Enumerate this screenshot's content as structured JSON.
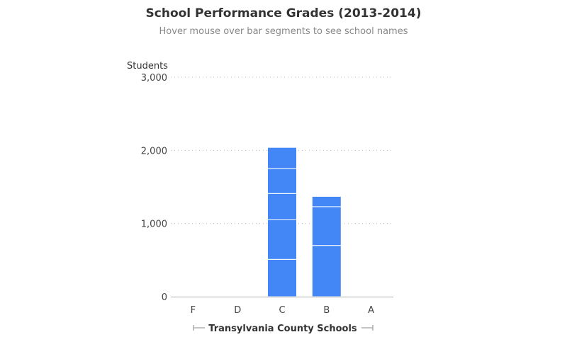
{
  "chart_data": {
    "type": "bar",
    "stacked": true,
    "title": "School Performance Grades (2013-2014)",
    "subtitle": "Hover mouse over bar segments to see school names",
    "ylabel": "Students",
    "xlabel": "",
    "ylim": [
      0,
      3000
    ],
    "yticks": [
      0,
      1000,
      2000,
      3000
    ],
    "ytick_labels": [
      "0",
      "1,000",
      "2,000",
      "3,000"
    ],
    "grid": true,
    "categories": [
      "F",
      "D",
      "C",
      "B",
      "A"
    ],
    "bar_color": "#4287f5",
    "segment_separator_color": "#ffffff",
    "segments": [
      [],
      [],
      [
        510,
        540,
        360,
        340,
        290
      ],
      [
        700,
        530,
        140
      ],
      []
    ],
    "legend": {
      "label": "Transylvania County Schools",
      "placement": "bottom-center"
    }
  }
}
